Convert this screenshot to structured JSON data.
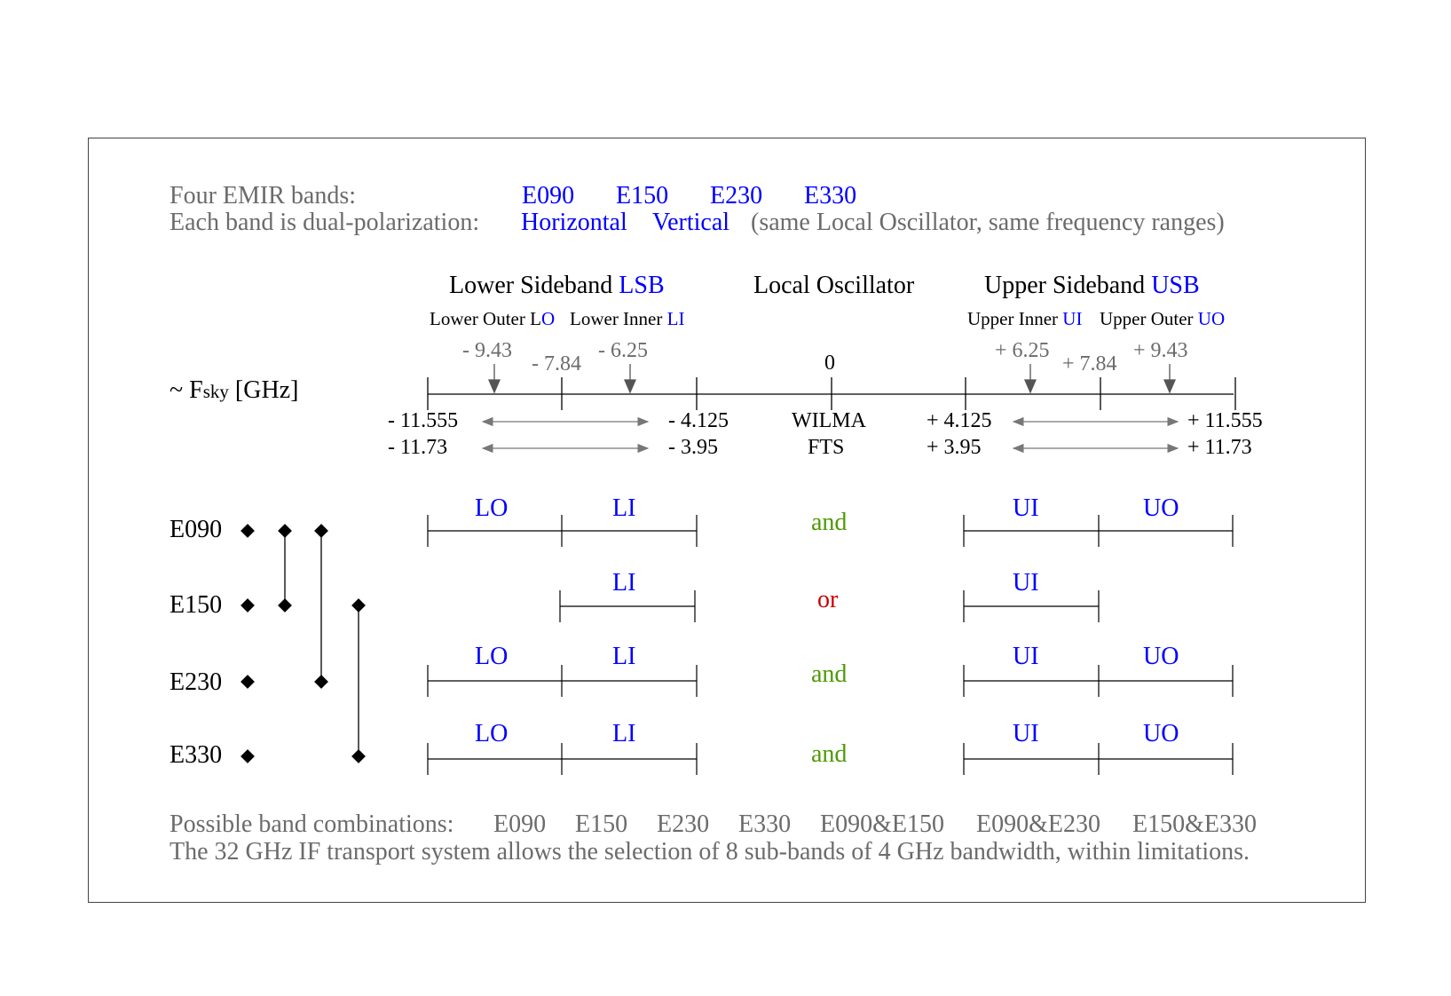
{
  "header": {
    "bands_label": "Four EMIR bands:",
    "bands": [
      "E090",
      "E150",
      "E230",
      "E330"
    ],
    "pol_label": "Each band is dual-polarization:",
    "pol_h": "Horizontal",
    "pol_v": "Vertical",
    "pol_note": "(same Local Oscillator, same frequency ranges)"
  },
  "axis": {
    "lsb_prefix": "Lower Sideband ",
    "lsb_abbr": "LSB",
    "lo_title": "Local Oscillator",
    "usb_prefix": "Upper Sideband ",
    "usb_abbr": "USB",
    "lower_outer_prefix": "Lower Outer L",
    "lower_outer_suffix": "O",
    "lower_inner_prefix": "Lower Inner ",
    "lower_inner_suffix": "LI",
    "upper_inner_prefix": "Upper Inner ",
    "upper_inner_suffix": "UI",
    "upper_outer_prefix": "Upper Outer ",
    "upper_outer_suffix": "UO",
    "fsky_tilde": "~ F",
    "fsky_sub": "sky",
    "fsky_unit": " [GHz]",
    "tick_m943": "- 9.43",
    "tick_m784": "- 7.84",
    "tick_m625": "- 6.25",
    "tick_zero": "0",
    "tick_p625": "+ 6.25",
    "tick_p784": "+ 7.84",
    "tick_p943": "+ 9.43",
    "wilma_label": "WILMA",
    "fts_label": "FTS",
    "wilma_lsb_low": "- 11.555",
    "wilma_lsb_high": "- 4.125",
    "wilma_usb_low": "+ 4.125",
    "wilma_usb_high": "+ 11.555",
    "fts_lsb_low": "- 11.73",
    "fts_lsb_high": "- 3.95",
    "fts_usb_low": "+ 3.95",
    "fts_usb_high": "+ 11.73"
  },
  "rows": [
    {
      "band": "E090",
      "lo": "LO",
      "li": "LI",
      "conj": "and",
      "ui": "UI",
      "uo": "UO"
    },
    {
      "band": "E150",
      "lo": "",
      "li": "LI",
      "conj": "or",
      "ui": "UI",
      "uo": ""
    },
    {
      "band": "E230",
      "lo": "LO",
      "li": "LI",
      "conj": "and",
      "ui": "UI",
      "uo": "UO"
    },
    {
      "band": "E330",
      "lo": "LO",
      "li": "LI",
      "conj": "and",
      "ui": "UI",
      "uo": "UO"
    }
  ],
  "footer": {
    "combos_label": "Possible band combinations:",
    "combos": [
      "E090",
      "E150",
      "E230",
      "E330",
      "E090&E150",
      "E090&E230",
      "E150&E330"
    ],
    "note": "The 32 GHz IF transport system allows the selection of 8 sub-bands of 4 GHz bandwidth, within limitations."
  },
  "colors": {
    "blue": "#0000ff",
    "gray": "#6b6b6b",
    "green": "#4e9a06",
    "red": "#cc0000"
  }
}
